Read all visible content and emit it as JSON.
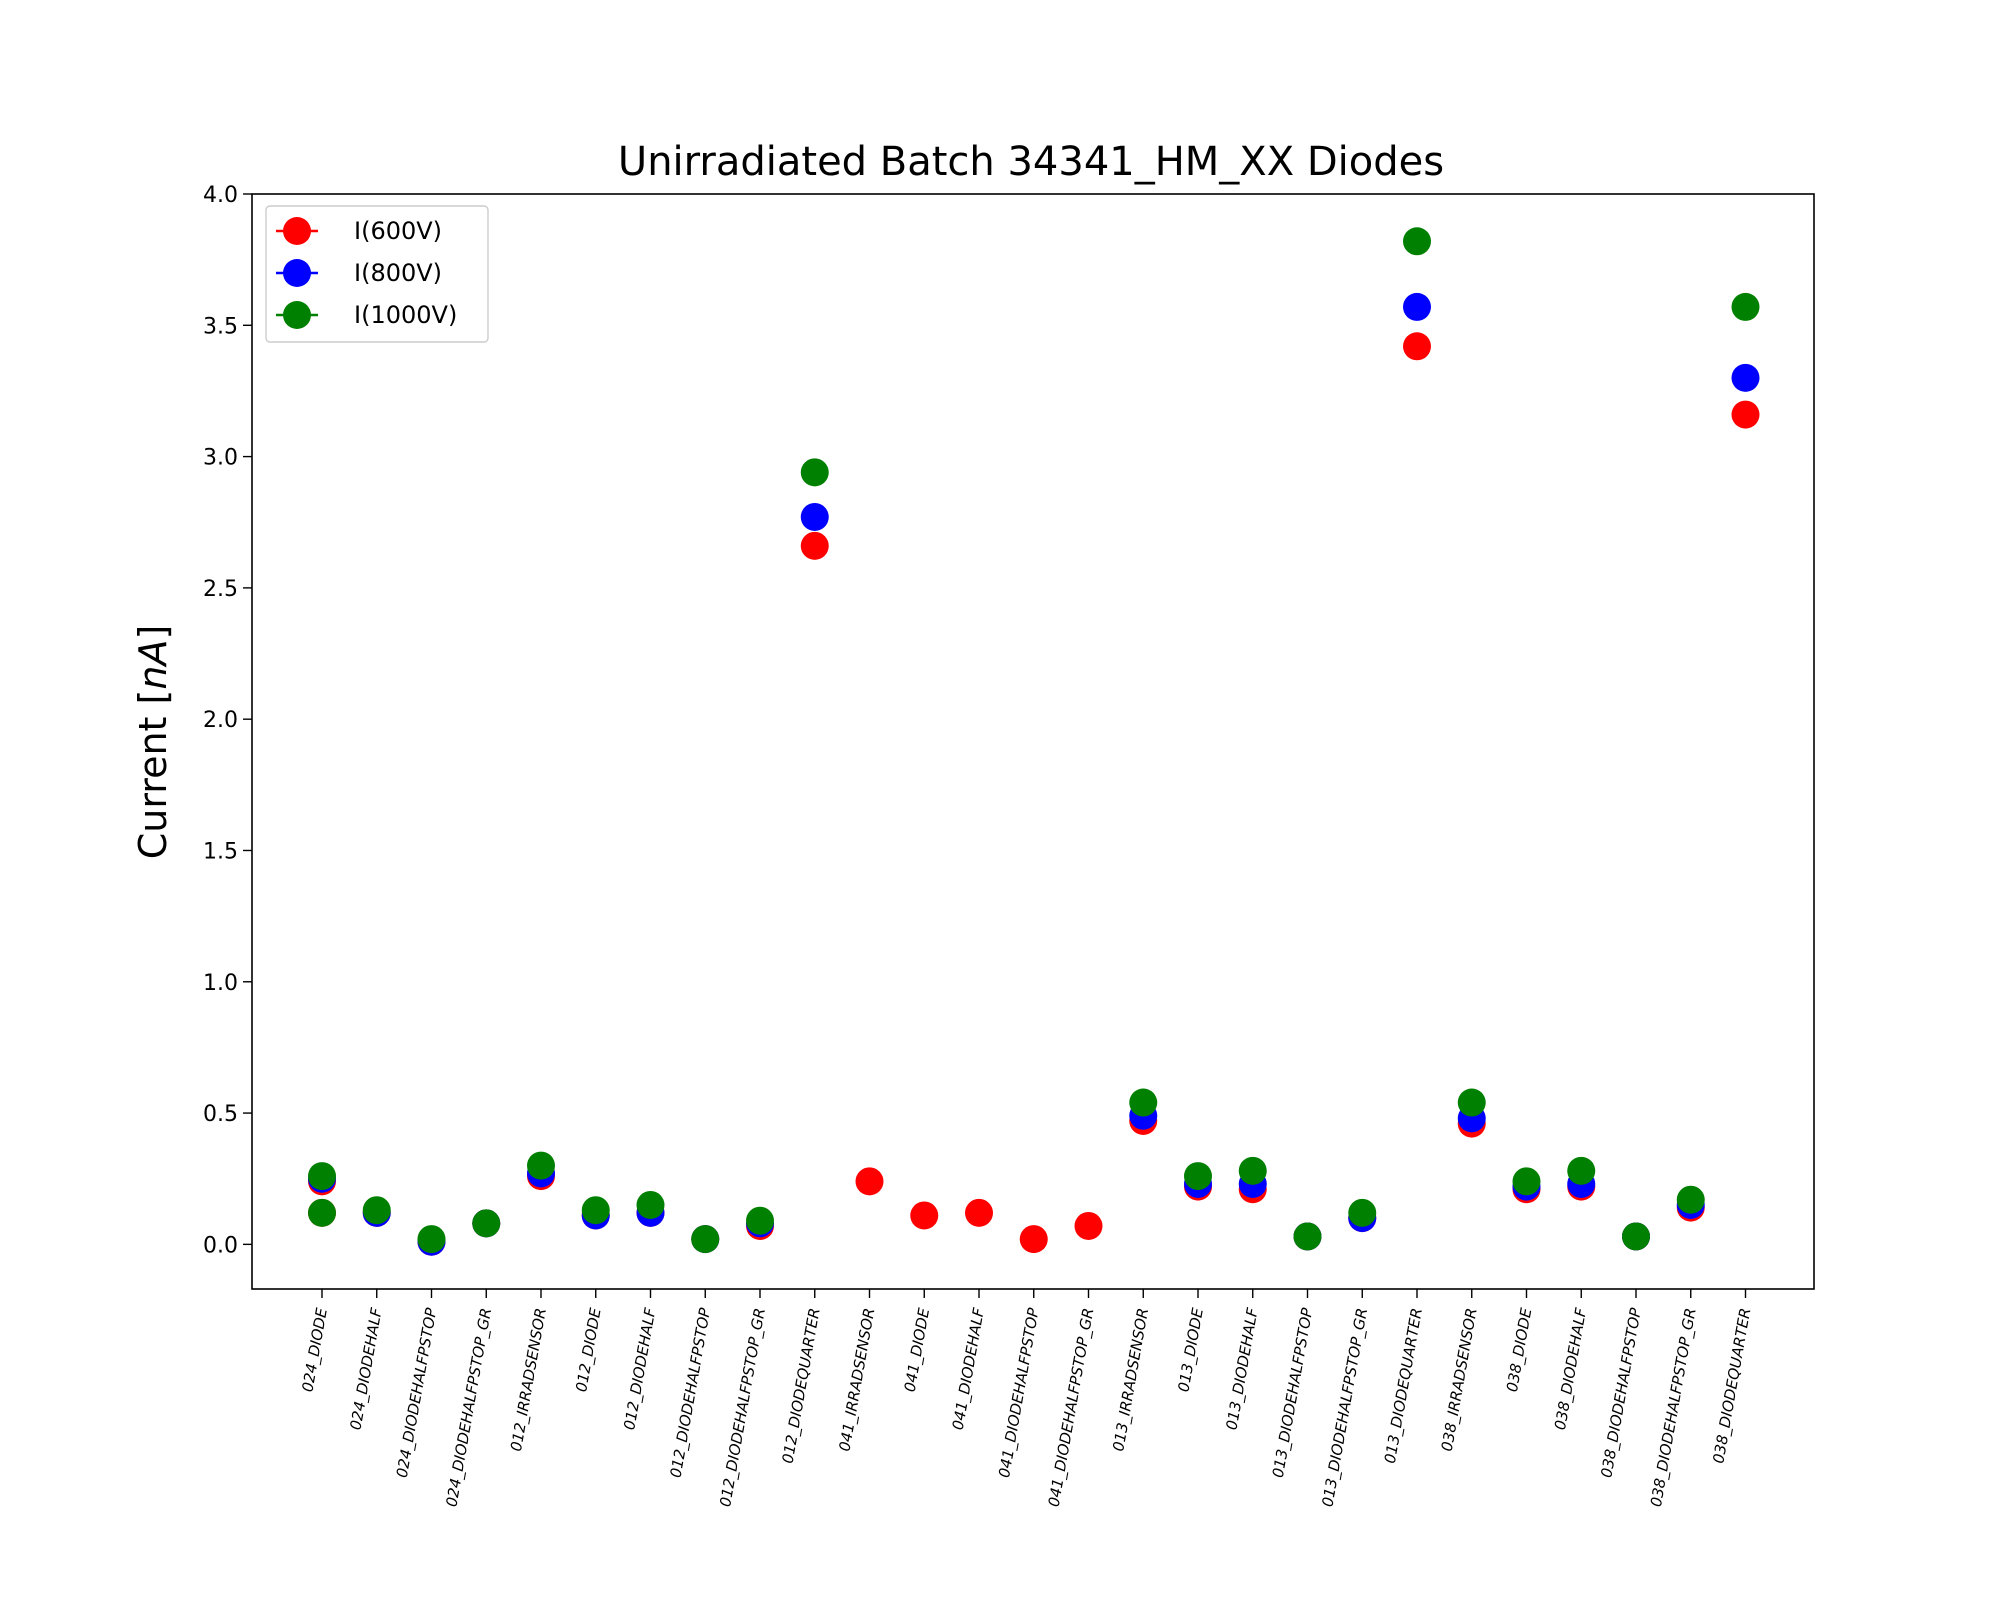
{
  "chart_data": {
    "type": "scatter",
    "title": "Unirradiated Batch 34341_HM_XX Diodes",
    "xlabel": "",
    "ylabel": "Current [nA]",
    "ylabel_plain": "Current [",
    "ylabel_italic": "nA",
    "ylabel_close": "]",
    "ylim": [
      -0.17,
      4.0
    ],
    "yticks": [
      "0.0",
      "0.5",
      "1.0",
      "1.5",
      "2.0",
      "2.5",
      "3.0",
      "3.5",
      "4.0"
    ],
    "ytick_values": [
      0.0,
      0.5,
      1.0,
      1.5,
      2.0,
      2.5,
      3.0,
      3.5,
      4.0
    ],
    "grid": false,
    "legend_position": "top-left",
    "categories": [
      "024_DIODE",
      "024_DIODEHALF",
      "024_DIODEHALFPSTOP",
      "024_DIODEHALFPSTOP_GR",
      "012_IRRADSENSOR",
      "012_DIODE",
      "012_DIODEHALF",
      "012_DIODEHALFPSTOP",
      "012_DIODEHALFPSTOP_GR",
      "012_DIODEQUARTER",
      "041_IRRADSENSOR",
      "041_DIODE",
      "041_DIODEHALF",
      "041_DIODEHALFPSTOP",
      "041_DIODEHALFPSTOP_GR",
      "013_IRRADSENSOR",
      "013_DIODE",
      "013_DIODEHALF",
      "013_DIODEHALFPSTOP",
      "013_DIODEHALFPSTOP_GR",
      "013_DIODEQUARTER",
      "038_IRRADSENSOR",
      "038_DIODE",
      "038_DIODEHALF",
      "038_DIODEHALFPSTOP",
      "038_DIODEHALFPSTOP_GR",
      "038_DIODEQUARTER"
    ],
    "series": [
      {
        "name": "I(600V)",
        "color": "#ff0000",
        "values": [
          0.24,
          0.12,
          0.01,
          0.08,
          0.26,
          0.11,
          0.12,
          0.02,
          0.07,
          2.66,
          0.24,
          0.11,
          0.12,
          0.02,
          0.07,
          0.47,
          0.22,
          0.21,
          0.03,
          0.1,
          3.42,
          0.46,
          0.21,
          0.22,
          0.03,
          0.14,
          3.16
        ]
      },
      {
        "name": "I(800V)",
        "color": "#0000ff",
        "values": [
          0.25,
          0.12,
          0.01,
          0.08,
          0.27,
          0.11,
          0.12,
          0.02,
          0.08,
          2.77,
          null,
          null,
          null,
          null,
          null,
          0.49,
          0.23,
          0.23,
          0.03,
          0.1,
          3.57,
          0.48,
          0.22,
          0.23,
          0.03,
          0.15,
          3.3
        ]
      },
      {
        "name": "I(1000V)",
        "color": "#008000",
        "values": [
          0.26,
          0.13,
          0.02,
          0.08,
          0.3,
          0.13,
          0.15,
          0.02,
          0.09,
          2.94,
          null,
          null,
          null,
          null,
          null,
          0.54,
          0.26,
          0.28,
          0.03,
          0.12,
          3.82,
          0.54,
          0.24,
          0.28,
          0.03,
          0.17,
          3.57
        ]
      }
    ],
    "extra_points": [
      {
        "category": "024_DIODE",
        "series": "I(600V)",
        "value": 0.12
      },
      {
        "category": "024_DIODE",
        "series": "I(1000V)",
        "value": 0.12
      }
    ]
  }
}
